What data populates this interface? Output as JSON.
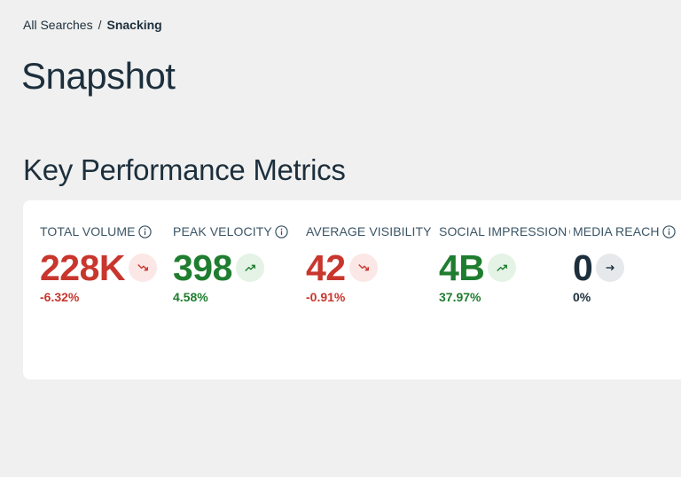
{
  "breadcrumb": {
    "parent": "All Searches",
    "separator": "/",
    "current": "Snacking"
  },
  "page_title": "Snapshot",
  "section_title": "Key Performance Metrics",
  "metrics": [
    {
      "label": "TOTAL VOLUME",
      "value": "228K",
      "change": "-6.32%",
      "trend": "down",
      "trend_icon": "trending-down-icon",
      "info_icon": "info-icon"
    },
    {
      "label": "PEAK VELOCITY",
      "value": "398",
      "change": "4.58%",
      "trend": "up",
      "trend_icon": "trending-up-icon",
      "info_icon": "info-icon"
    },
    {
      "label": "AVERAGE VISIBILITY",
      "value": "42",
      "change": "-0.91%",
      "trend": "down",
      "trend_icon": "trending-down-icon",
      "info_icon": "info-icon"
    },
    {
      "label": "SOCIAL IMPRESSION",
      "value": "4B",
      "change": "37.97%",
      "trend": "up",
      "trend_icon": "trending-up-icon",
      "info_icon": "info-icon"
    },
    {
      "label": "MEDIA REACH",
      "value": "0",
      "change": "0%",
      "trend": "flat",
      "trend_icon": "arrow-right-icon",
      "info_icon": "info-icon"
    }
  ],
  "colors": {
    "background": "#f0f0f0",
    "card": "#ffffff",
    "text_primary": "#1d2f3c",
    "negative": "#c8362d",
    "positive": "#1f7d2f",
    "neutral": "#1d2f3c"
  }
}
